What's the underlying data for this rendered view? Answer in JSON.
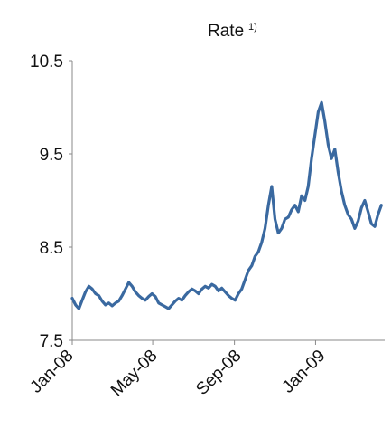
{
  "chart_data": {
    "type": "line",
    "title": "Rate",
    "title_superscript": "1)",
    "xlabel": "",
    "ylabel": "",
    "y_ticks": [
      "10.5",
      "9.5",
      "8.5",
      "7.5"
    ],
    "y_tick_values": [
      10.5,
      9.5,
      8.5,
      7.5
    ],
    "ylim": [
      7.5,
      10.5
    ],
    "x_ticks": [
      "Jan-08",
      "May-08",
      "Sep-08",
      "Jan-09"
    ],
    "x_tick_values": [
      "2008-01-01",
      "2008-05-01",
      "2008-09-01",
      "2009-01-01"
    ],
    "xlim": [
      "2008-01-01",
      "2009-04-15"
    ],
    "grid": false,
    "line_color": "#3a69a0",
    "series": [
      {
        "x": [
          "2008-01-01",
          "2008-01-06",
          "2008-01-11",
          "2008-01-16",
          "2008-01-21",
          "2008-01-26",
          "2008-01-31",
          "2008-02-05",
          "2008-02-10",
          "2008-02-15",
          "2008-02-20",
          "2008-02-25",
          "2008-03-01",
          "2008-03-06",
          "2008-03-11",
          "2008-03-16",
          "2008-03-21",
          "2008-03-26",
          "2008-03-31",
          "2008-04-05",
          "2008-04-10",
          "2008-04-15",
          "2008-04-20",
          "2008-04-25",
          "2008-04-30",
          "2008-05-05",
          "2008-05-10",
          "2008-05-15",
          "2008-05-20",
          "2008-05-25",
          "2008-05-30",
          "2008-06-04",
          "2008-06-09",
          "2008-06-14",
          "2008-06-19",
          "2008-06-24",
          "2008-06-29",
          "2008-07-04",
          "2008-07-09",
          "2008-07-14",
          "2008-07-19",
          "2008-07-24",
          "2008-07-29",
          "2008-08-03",
          "2008-08-08",
          "2008-08-13",
          "2008-08-18",
          "2008-08-23",
          "2008-08-28",
          "2008-09-02",
          "2008-09-07",
          "2008-09-12",
          "2008-09-17",
          "2008-09-22",
          "2008-09-27",
          "2008-10-02",
          "2008-10-07",
          "2008-10-12",
          "2008-10-17",
          "2008-10-22",
          "2008-10-27",
          "2008-11-01",
          "2008-11-06",
          "2008-11-11",
          "2008-11-16",
          "2008-11-21",
          "2008-11-26",
          "2008-12-01",
          "2008-12-06",
          "2008-12-11",
          "2008-12-16",
          "2008-12-21",
          "2008-12-26",
          "2008-12-31",
          "2009-01-05",
          "2009-01-10",
          "2009-01-15",
          "2009-01-20",
          "2009-01-25",
          "2009-01-30",
          "2009-02-04",
          "2009-02-09",
          "2009-02-14",
          "2009-02-19",
          "2009-02-24",
          "2009-03-01",
          "2009-03-06",
          "2009-03-11",
          "2009-03-16",
          "2009-03-21",
          "2009-03-26",
          "2009-03-31",
          "2009-04-05",
          "2009-04-10"
        ],
        "values": [
          7.95,
          7.88,
          7.84,
          7.93,
          8.02,
          8.08,
          8.05,
          8.0,
          7.98,
          7.92,
          7.88,
          7.9,
          7.87,
          7.9,
          7.92,
          7.98,
          8.05,
          8.12,
          8.08,
          8.02,
          7.98,
          7.95,
          7.93,
          7.97,
          8.0,
          7.97,
          7.9,
          7.88,
          7.86,
          7.84,
          7.88,
          7.92,
          7.95,
          7.93,
          7.98,
          8.02,
          8.05,
          8.03,
          8.0,
          8.05,
          8.08,
          8.06,
          8.1,
          8.08,
          8.03,
          8.06,
          8.02,
          7.98,
          7.95,
          7.93,
          8.0,
          8.05,
          8.15,
          8.25,
          8.3,
          8.4,
          8.45,
          8.55,
          8.7,
          8.95,
          9.15,
          8.8,
          8.65,
          8.7,
          8.8,
          8.82,
          8.9,
          8.95,
          8.88,
          9.05,
          9.0,
          9.15,
          9.45,
          9.7,
          9.95,
          10.05,
          9.85,
          9.6,
          9.45,
          9.55,
          9.3,
          9.1,
          8.95,
          8.85,
          8.8,
          8.7,
          8.78,
          8.92,
          9.0,
          8.88,
          8.75,
          8.72,
          8.85,
          8.95
        ]
      }
    ]
  }
}
